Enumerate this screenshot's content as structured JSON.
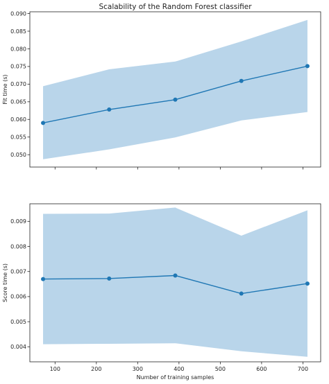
{
  "figure": {
    "title": "Scalability of the Random Forest classifier"
  },
  "chart_data": [
    {
      "type": "line",
      "title": "Scalability of the Random Forest classifier",
      "xlabel": "",
      "ylabel": "Fit time (s)",
      "xlim": [
        39,
        743
      ],
      "ylim": [
        0.0465,
        0.0905
      ],
      "x_ticks": [
        100,
        200,
        300,
        400,
        500,
        600,
        700
      ],
      "x_ticklabels_visible": false,
      "y_ticks": [
        0.05,
        0.055,
        0.06,
        0.065,
        0.07,
        0.075,
        0.08,
        0.085,
        0.09
      ],
      "y_ticklabels": [
        "0.050",
        "0.055",
        "0.060",
        "0.065",
        "0.070",
        "0.075",
        "0.080",
        "0.085",
        "0.090"
      ],
      "grid": false,
      "line_color": "#1f77b4",
      "band_color": "#b9d5ea",
      "x": [
        71,
        231,
        391,
        551,
        711
      ],
      "mean": [
        0.059,
        0.0628,
        0.0656,
        0.0709,
        0.0751
      ],
      "lower": [
        0.0487,
        0.0515,
        0.0549,
        0.0597,
        0.0621
      ],
      "upper": [
        0.0694,
        0.0742,
        0.0764,
        0.0821,
        0.0882
      ]
    },
    {
      "type": "line",
      "title": "",
      "xlabel": "Number of training samples",
      "ylabel": "Score time (s)",
      "xlim": [
        39,
        743
      ],
      "ylim": [
        0.0034,
        0.0097
      ],
      "x_ticks": [
        100,
        200,
        300,
        400,
        500,
        600,
        700
      ],
      "x_ticklabels": [
        "100",
        "200",
        "300",
        "400",
        "500",
        "600",
        "700"
      ],
      "y_ticks": [
        0.004,
        0.005,
        0.006,
        0.007,
        0.008,
        0.009
      ],
      "y_ticklabels": [
        "0.004",
        "0.005",
        "0.006",
        "0.007",
        "0.008",
        "0.009"
      ],
      "grid": false,
      "line_color": "#1f77b4",
      "band_color": "#b9d5ea",
      "x": [
        71,
        231,
        391,
        551,
        711
      ],
      "mean": [
        0.0067,
        0.00672,
        0.00684,
        0.00612,
        0.00652
      ],
      "lower": [
        0.0041,
        0.00412,
        0.00414,
        0.00382,
        0.0036
      ],
      "upper": [
        0.0093,
        0.00931,
        0.00955,
        0.00843,
        0.00944
      ]
    }
  ]
}
